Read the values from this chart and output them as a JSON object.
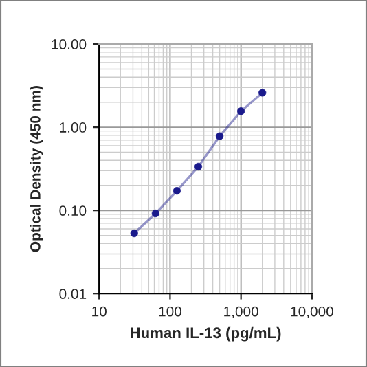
{
  "chart_data": {
    "type": "line",
    "xlabel": "Human IL-13 (pg/mL)",
    "ylabel": "Optical Density (450 nm)",
    "x": [
      31.25,
      62.5,
      125,
      250,
      500,
      1000,
      2000
    ],
    "series": [
      {
        "color": "#1a1a8c",
        "values": [
          0.053,
          0.092,
          0.172,
          0.336,
          0.78,
          1.56,
          2.6
        ]
      }
    ],
    "log": "xy",
    "marker": "circle",
    "line_style": "solid",
    "grid": true,
    "xlim": [
      10,
      10000
    ],
    "xticks": [
      10,
      100,
      {
        "value": 1000,
        "label": "1,000"
      },
      {
        "value": 10000,
        "label": "10,000"
      }
    ],
    "ylim": [
      0.01,
      10
    ],
    "yticks": [
      {
        "value": 0.01,
        "label": "0.01"
      },
      {
        "value": 0.1,
        "label": "0.10"
      },
      {
        "value": 1,
        "label": "1.00"
      },
      {
        "value": 10,
        "label": "10.00"
      }
    ]
  }
}
